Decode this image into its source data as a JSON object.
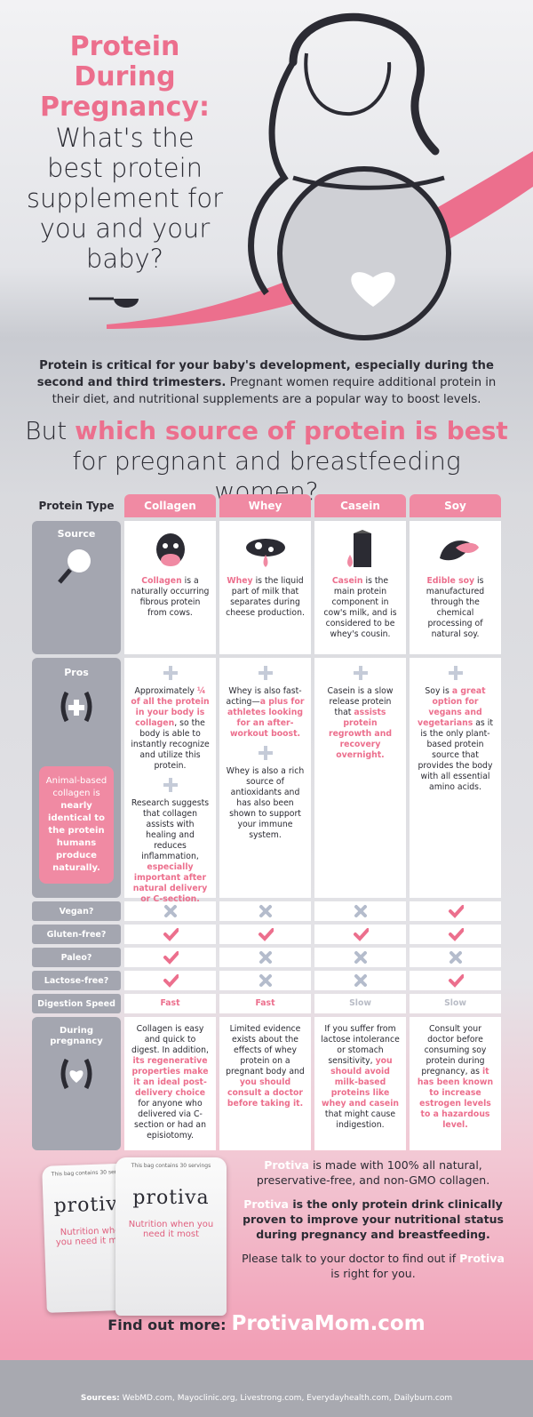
{
  "header": {
    "title_emphasis": "Protein During Pregnancy:",
    "title": "What's the best protein supplement for you and your baby?"
  },
  "intro": {
    "lead": "Protein is critical for your baby's development, especially during the second and third trimesters.",
    "body": "Pregnant women require additional protein in their diet, and nutritional supplements are a popular way to boost levels."
  },
  "question": [
    "But ",
    {
      "em": "which source of protein is best"
    },
    " for pregnant and breastfeeding women?"
  ],
  "table": {
    "corner": "Protein Type",
    "columns": [
      "Collagen",
      "Whey",
      "Casein",
      "Soy"
    ],
    "source": {
      "label": "Source",
      "cells": [
        [
          {
            "em": "Collagen"
          },
          " is a naturally occurring fibrous protein from cows."
        ],
        [
          {
            "em": "Whey"
          },
          " is the liquid part of milk that separates during cheese production."
        ],
        [
          {
            "em": "Casein"
          },
          " is the main protein component in cow's milk, and is considered to be whey's cousin."
        ],
        [
          {
            "em": "Edible soy"
          },
          " is manufactured through the chemical processing of natural soy."
        ]
      ]
    },
    "pros": {
      "label": "Pros",
      "note": [
        "Animal-based collagen is ",
        {
          "em": "nearly identical to the protein humans produce naturally."
        }
      ],
      "cells": [
        [
          [
            "Approximately ",
            {
              "em": "¼ of all the protein in your body is collagen"
            },
            ", so the body is able to instantly recognize and utilize this protein."
          ],
          [
            "Research suggests that collagen assists with healing and reduces inflammation, ",
            {
              "em": "especially important after natural delivery or C-section."
            }
          ]
        ],
        [
          [
            "Whey is also fast-acting—",
            {
              "em": "a plus for athletes looking for an after-workout boost."
            }
          ],
          [
            "Whey is also a rich source of antioxidants and has also been shown to support your immune system."
          ]
        ],
        [
          [
            "Casein is a slow release protein that ",
            {
              "em": "assists protein regrowth and recovery overnight."
            }
          ]
        ],
        [
          [
            "Soy is ",
            {
              "em": "a great option for vegans and vegetarians"
            },
            " as it is the only plant-based protein source that provides the body with all essential amino acids."
          ]
        ]
      ]
    },
    "checks": [
      {
        "label": "Vegan?",
        "values": [
          false,
          false,
          false,
          true
        ]
      },
      {
        "label": "Gluten-free?",
        "values": [
          true,
          true,
          true,
          true
        ]
      },
      {
        "label": "Paleo?",
        "values": [
          true,
          false,
          false,
          false
        ]
      },
      {
        "label": "Lactose-free?",
        "values": [
          true,
          false,
          false,
          true
        ]
      }
    ],
    "digestion": {
      "label": "Digestion Speed",
      "values": [
        "Fast",
        "Fast",
        "Slow",
        "Slow"
      ],
      "colors": [
        "#ec6f8d",
        "#ec6f8d",
        "#b9bcc6",
        "#b9bcc6"
      ]
    },
    "pregnancy": {
      "label": "During pregnancy",
      "cells": [
        [
          "Collagen is easy and quick to digest. In addition, ",
          {
            "em": "its regenerative properties make it an ideal post-delivery choice"
          },
          " for anyone who delivered via C-section or had an episiotomy."
        ],
        [
          "Limited evidence exists about the effects of whey protein on a pregnant body and ",
          {
            "em": "you should consult a doctor before taking it."
          }
        ],
        [
          "If you suffer from lactose intolerance or stomach sensitivity, ",
          {
            "em": "you should avoid milk-based proteins like whey and casein"
          },
          " that might cause indigestion."
        ],
        [
          "Consult your doctor before consuming soy protein during pregnancy, as ",
          {
            "em": "it has been known to increase estrogen levels to a hazardous level."
          }
        ]
      ]
    }
  },
  "product": {
    "bag_note": "This bag contains 30 servings",
    "brand": "protiva",
    "tagline": "Nutrition when you need it most",
    "paragraphs": [
      [
        {
          "em": "Protiva"
        },
        " is made with 100% all natural, preservative-free, and non-GMO collagen."
      ],
      [
        {
          "em": "Protiva"
        },
        " is the only protein drink clinically proven to improve your nutritional status during pregnancy and breastfeeding."
      ],
      [
        "Please talk to your doctor to find out if ",
        {
          "em": "Protiva"
        },
        " is right for you."
      ]
    ]
  },
  "footer": {
    "cta": "Find out more:",
    "url": "ProtivaMom.com",
    "sources_label": "Sources:",
    "sources": "WebMD.com, Mayoclinic.org, Livestrong.com, Everydayhealth.com, Dailyburn.com"
  }
}
